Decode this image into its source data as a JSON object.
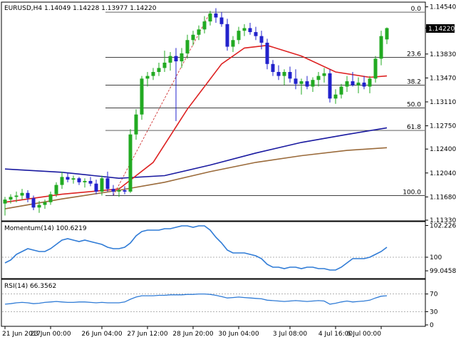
{
  "header": {
    "symbol": "EURUSD,H4",
    "ohlc": "1.14049 1.14228 1.13977 1.14220"
  },
  "price_axis": {
    "ticks": [
      "1.14540",
      "1.14220",
      "1.13830",
      "1.13470",
      "1.13110",
      "1.12750",
      "1.12400",
      "1.12040",
      "1.11680",
      "1.11330"
    ],
    "current": "1.14220"
  },
  "fib_levels": [
    "0.0",
    "23.6",
    "38.2",
    "50.0",
    "61.8",
    "100.0"
  ],
  "momentum": {
    "label": "Momentum(14) 100.6219",
    "ticks": [
      "102.2267",
      "100",
      "99.0458"
    ]
  },
  "rsi": {
    "label": "RSI(14) 66.3562",
    "ticks": [
      "70",
      "30",
      "0"
    ]
  },
  "time_axis": {
    "ticks": [
      "21 Jun 2017",
      "23 Jun 00:00",
      "26 Jun 04:00",
      "27 Jun 12:00",
      "28 Jun 20:00",
      "30 Jun 04:00",
      "3 Jul 08:00",
      "4 Jul 16:00",
      "6 Jul 00:00"
    ]
  },
  "colors": {
    "bull": "#22aa22",
    "bear": "#2222cc",
    "sma20": "#dd2222",
    "sma100": "#1a1aa0",
    "sma200": "#9a6a3a",
    "indicator": "#2f7bd6",
    "current_box": "#000000"
  },
  "chart_data": {
    "type": "candlestick",
    "price_range": [
      1.1133,
      1.146
    ],
    "candles": [
      {
        "o": 1.1158,
        "h": 1.1168,
        "l": 1.114,
        "c": 1.1164
      },
      {
        "o": 1.1164,
        "h": 1.1172,
        "l": 1.1158,
        "c": 1.1168
      },
      {
        "o": 1.1168,
        "h": 1.1176,
        "l": 1.116,
        "c": 1.117
      },
      {
        "o": 1.117,
        "h": 1.118,
        "l": 1.1164,
        "c": 1.1174
      },
      {
        "o": 1.1174,
        "h": 1.1178,
        "l": 1.116,
        "c": 1.1166
      },
      {
        "o": 1.1166,
        "h": 1.117,
        "l": 1.1148,
        "c": 1.1152
      },
      {
        "o": 1.1152,
        "h": 1.1162,
        "l": 1.1144,
        "c": 1.1156
      },
      {
        "o": 1.1156,
        "h": 1.1164,
        "l": 1.115,
        "c": 1.116
      },
      {
        "o": 1.116,
        "h": 1.1176,
        "l": 1.1156,
        "c": 1.1172
      },
      {
        "o": 1.1172,
        "h": 1.119,
        "l": 1.1168,
        "c": 1.1186
      },
      {
        "o": 1.1186,
        "h": 1.1206,
        "l": 1.118,
        "c": 1.1198
      },
      {
        "o": 1.1198,
        "h": 1.1204,
        "l": 1.119,
        "c": 1.1194
      },
      {
        "o": 1.1194,
        "h": 1.12,
        "l": 1.1188,
        "c": 1.1196
      },
      {
        "o": 1.1196,
        "h": 1.1198,
        "l": 1.1186,
        "c": 1.119
      },
      {
        "o": 1.119,
        "h": 1.1196,
        "l": 1.1182,
        "c": 1.1192
      },
      {
        "o": 1.1192,
        "h": 1.1198,
        "l": 1.1184,
        "c": 1.1188
      },
      {
        "o": 1.1188,
        "h": 1.1194,
        "l": 1.1172,
        "c": 1.1176
      },
      {
        "o": 1.1176,
        "h": 1.12,
        "l": 1.117,
        "c": 1.1196
      },
      {
        "o": 1.1196,
        "h": 1.1206,
        "l": 1.1176,
        "c": 1.118
      },
      {
        "o": 1.118,
        "h": 1.1186,
        "l": 1.117,
        "c": 1.1176
      },
      {
        "o": 1.1176,
        "h": 1.1182,
        "l": 1.1168,
        "c": 1.1178
      },
      {
        "o": 1.1178,
        "h": 1.1184,
        "l": 1.1172,
        "c": 1.1176
      },
      {
        "o": 1.1176,
        "h": 1.127,
        "l": 1.1174,
        "c": 1.1262
      },
      {
        "o": 1.1262,
        "h": 1.13,
        "l": 1.1254,
        "c": 1.1292
      },
      {
        "o": 1.1292,
        "h": 1.135,
        "l": 1.1284,
        "c": 1.1346
      },
      {
        "o": 1.1346,
        "h": 1.1356,
        "l": 1.1334,
        "c": 1.135
      },
      {
        "o": 1.135,
        "h": 1.1362,
        "l": 1.1344,
        "c": 1.1356
      },
      {
        "o": 1.1356,
        "h": 1.137,
        "l": 1.135,
        "c": 1.1362
      },
      {
        "o": 1.1362,
        "h": 1.1388,
        "l": 1.1356,
        "c": 1.137
      },
      {
        "o": 1.137,
        "h": 1.1386,
        "l": 1.1358,
        "c": 1.138
      },
      {
        "o": 1.138,
        "h": 1.1392,
        "l": 1.1282,
        "c": 1.1372
      },
      {
        "o": 1.1372,
        "h": 1.1392,
        "l": 1.1362,
        "c": 1.1384
      },
      {
        "o": 1.1384,
        "h": 1.1412,
        "l": 1.1376,
        "c": 1.1404
      },
      {
        "o": 1.1404,
        "h": 1.1418,
        "l": 1.1396,
        "c": 1.1412
      },
      {
        "o": 1.1412,
        "h": 1.1426,
        "l": 1.1404,
        "c": 1.142
      },
      {
        "o": 1.142,
        "h": 1.144,
        "l": 1.1414,
        "c": 1.1432
      },
      {
        "o": 1.1432,
        "h": 1.1448,
        "l": 1.1426,
        "c": 1.1444
      },
      {
        "o": 1.1444,
        "h": 1.1452,
        "l": 1.143,
        "c": 1.1438
      },
      {
        "o": 1.1438,
        "h": 1.1446,
        "l": 1.1424,
        "c": 1.1428
      },
      {
        "o": 1.1428,
        "h": 1.1436,
        "l": 1.1388,
        "c": 1.1394
      },
      {
        "o": 1.1394,
        "h": 1.141,
        "l": 1.1386,
        "c": 1.1404
      },
      {
        "o": 1.1404,
        "h": 1.1424,
        "l": 1.1398,
        "c": 1.1418
      },
      {
        "o": 1.1418,
        "h": 1.1428,
        "l": 1.141,
        "c": 1.1422
      },
      {
        "o": 1.1422,
        "h": 1.143,
        "l": 1.1412,
        "c": 1.1416
      },
      {
        "o": 1.1416,
        "h": 1.1424,
        "l": 1.1404,
        "c": 1.141
      },
      {
        "o": 1.141,
        "h": 1.1418,
        "l": 1.139,
        "c": 1.14
      },
      {
        "o": 1.14,
        "h": 1.1406,
        "l": 1.136,
        "c": 1.1368
      },
      {
        "o": 1.1368,
        "h": 1.1374,
        "l": 1.135,
        "c": 1.1356
      },
      {
        "o": 1.1356,
        "h": 1.1366,
        "l": 1.1344,
        "c": 1.135
      },
      {
        "o": 1.135,
        "h": 1.136,
        "l": 1.1336,
        "c": 1.1356
      },
      {
        "o": 1.1356,
        "h": 1.1364,
        "l": 1.134,
        "c": 1.1346
      },
      {
        "o": 1.1346,
        "h": 1.136,
        "l": 1.133,
        "c": 1.1338
      },
      {
        "o": 1.1338,
        "h": 1.1346,
        "l": 1.1322,
        "c": 1.1342
      },
      {
        "o": 1.1342,
        "h": 1.135,
        "l": 1.133,
        "c": 1.1334
      },
      {
        "o": 1.1334,
        "h": 1.1348,
        "l": 1.1326,
        "c": 1.1344
      },
      {
        "o": 1.1344,
        "h": 1.1356,
        "l": 1.1334,
        "c": 1.135
      },
      {
        "o": 1.135,
        "h": 1.1362,
        "l": 1.134,
        "c": 1.1354
      },
      {
        "o": 1.1354,
        "h": 1.136,
        "l": 1.131,
        "c": 1.1316
      },
      {
        "o": 1.1316,
        "h": 1.133,
        "l": 1.1308,
        "c": 1.1322
      },
      {
        "o": 1.1322,
        "h": 1.1338,
        "l": 1.1316,
        "c": 1.1334
      },
      {
        "o": 1.1334,
        "h": 1.135,
        "l": 1.1326,
        "c": 1.1342
      },
      {
        "o": 1.1342,
        "h": 1.1356,
        "l": 1.1334,
        "c": 1.1336
      },
      {
        "o": 1.1336,
        "h": 1.1348,
        "l": 1.1324,
        "c": 1.134
      },
      {
        "o": 1.134,
        "h": 1.135,
        "l": 1.133,
        "c": 1.1334
      },
      {
        "o": 1.1334,
        "h": 1.135,
        "l": 1.1324,
        "c": 1.1346
      },
      {
        "o": 1.1346,
        "h": 1.138,
        "l": 1.134,
        "c": 1.1376
      },
      {
        "o": 1.1376,
        "h": 1.1418,
        "l": 1.1366,
        "c": 1.141
      },
      {
        "o": 1.1405,
        "h": 1.1423,
        "l": 1.1398,
        "c": 1.1422
      }
    ],
    "sma20": [
      [
        0,
        1.116
      ],
      [
        10,
        1.1172
      ],
      [
        20,
        1.118
      ],
      [
        26,
        1.122
      ],
      [
        32,
        1.13
      ],
      [
        38,
        1.1368
      ],
      [
        42,
        1.1392
      ],
      [
        46,
        1.1396
      ],
      [
        52,
        1.138
      ],
      [
        58,
        1.1356
      ],
      [
        64,
        1.1348
      ],
      [
        67,
        1.135
      ]
    ],
    "sma100": [
      [
        0,
        1.121
      ],
      [
        10,
        1.1205
      ],
      [
        20,
        1.1196
      ],
      [
        28,
        1.12
      ],
      [
        36,
        1.1216
      ],
      [
        44,
        1.1234
      ],
      [
        52,
        1.125
      ],
      [
        60,
        1.1262
      ],
      [
        67,
        1.1272
      ]
    ],
    "sma200": [
      [
        0,
        1.115
      ],
      [
        10,
        1.1165
      ],
      [
        20,
        1.1178
      ],
      [
        28,
        1.119
      ],
      [
        36,
        1.1206
      ],
      [
        44,
        1.122
      ],
      [
        52,
        1.123
      ],
      [
        60,
        1.1238
      ],
      [
        67,
        1.1242
      ]
    ],
    "fib_values": [
      1.1446,
      1.1378,
      1.1336,
      1.1302,
      1.1268,
      1.117
    ],
    "momentum_range": [
      98.6,
      102.4
    ],
    "momentum_series": [
      99.6,
      99.8,
      100.2,
      100.4,
      100.6,
      100.5,
      100.4,
      100.4,
      100.6,
      100.9,
      101.2,
      101.3,
      101.2,
      101.1,
      101.2,
      101.1,
      101.0,
      100.9,
      100.7,
      100.6,
      100.6,
      100.7,
      101.0,
      101.5,
      101.8,
      101.9,
      101.9,
      101.9,
      102.0,
      102.0,
      102.1,
      102.2,
      102.2,
      102.1,
      102.2,
      102.2,
      101.9,
      101.4,
      101.0,
      100.5,
      100.3,
      100.3,
      100.3,
      100.2,
      100.1,
      99.9,
      99.5,
      99.3,
      99.3,
      99.2,
      99.3,
      99.3,
      99.2,
      99.3,
      99.3,
      99.2,
      99.2,
      99.1,
      99.1,
      99.3,
      99.6,
      99.9,
      99.9,
      99.9,
      100.0,
      100.2,
      100.4,
      100.7
    ],
    "rsi_series": [
      47,
      48,
      50,
      51,
      50,
      48,
      49,
      51,
      52,
      53,
      52,
      51,
      51,
      52,
      52,
      51,
      50,
      51,
      50,
      50,
      50,
      52,
      58,
      63,
      66,
      66,
      66,
      67,
      67,
      68,
      68,
      68,
      69,
      69,
      70,
      70,
      69,
      67,
      64,
      61,
      62,
      63,
      62,
      61,
      60,
      59,
      56,
      55,
      54,
      53,
      54,
      55,
      54,
      53,
      54,
      55,
      54,
      47,
      49,
      52,
      54,
      52,
      53,
      54,
      56,
      61,
      65,
      66
    ]
  }
}
